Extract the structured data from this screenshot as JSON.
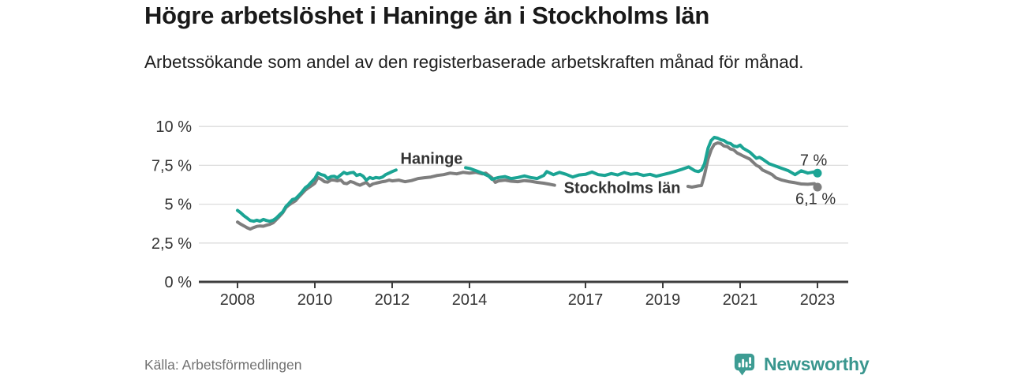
{
  "header": {
    "title": "Högre arbetslöshet i Haninge än i Stockholms län",
    "subtitle": "Arbetssökande som andel av den registerbaserade arbetskraften månad för månad."
  },
  "footer": {
    "source": "Källa: Arbetsförmedlingen",
    "logo_text": "Newsworthy",
    "logo_icon": "bar-chart-speech-bubble-icon"
  },
  "colors": {
    "haninge": "#1ba494",
    "stockholm": "#7e7e7e",
    "axis": "#3d3d3d",
    "grid": "#dcdcdc",
    "tick_text": "#333333",
    "value_text": "#2e2e2e",
    "logo": "#3a988f"
  },
  "chart_data": {
    "type": "line",
    "unit": "%",
    "grid": true,
    "legend": "inline-labels",
    "ylim": [
      0,
      10
    ],
    "xlim": [
      2007,
      2023.85
    ],
    "y_ticks": [
      {
        "v": 0,
        "label": "0 %"
      },
      {
        "v": 2.5,
        "label": "2,5 %"
      },
      {
        "v": 5,
        "label": "5 %"
      },
      {
        "v": 7.5,
        "label": "7,5 %"
      },
      {
        "v": 10,
        "label": "10 %"
      }
    ],
    "x_ticks": [
      {
        "x": 2008,
        "label": "2008"
      },
      {
        "x": 2010,
        "label": "2010"
      },
      {
        "x": 2012,
        "label": "2012"
      },
      {
        "x": 2014,
        "label": "2014"
      },
      {
        "x": 2017,
        "label": "2017"
      },
      {
        "x": 2019,
        "label": "2019"
      },
      {
        "x": 2021,
        "label": "2021"
      },
      {
        "x": 2023,
        "label": "2023"
      }
    ],
    "series": [
      {
        "name": "Stockholms län",
        "slug": "stockholms-lan",
        "color": "#7e7e7e",
        "end_value": 6.1,
        "end_label": "6,1 %",
        "end_label_xy": [
          2022.95,
          5.35
        ],
        "label_xy": [
          2017.95,
          6.08
        ],
        "segments": [
          [
            [
              2008.0,
              3.85
            ],
            [
              2008.08,
              3.72
            ],
            [
              2008.17,
              3.6
            ],
            [
              2008.25,
              3.48
            ],
            [
              2008.33,
              3.4
            ],
            [
              2008.42,
              3.5
            ],
            [
              2008.5,
              3.57
            ],
            [
              2008.58,
              3.6
            ],
            [
              2008.67,
              3.58
            ],
            [
              2008.75,
              3.65
            ],
            [
              2008.83,
              3.7
            ],
            [
              2008.92,
              3.8
            ],
            [
              2009.0,
              4.0
            ],
            [
              2009.08,
              4.2
            ],
            [
              2009.17,
              4.45
            ],
            [
              2009.25,
              4.78
            ],
            [
              2009.33,
              4.95
            ],
            [
              2009.42,
              5.1
            ],
            [
              2009.5,
              5.22
            ],
            [
              2009.58,
              5.45
            ],
            [
              2009.67,
              5.68
            ],
            [
              2009.75,
              5.9
            ],
            [
              2009.83,
              6.05
            ],
            [
              2009.92,
              6.2
            ],
            [
              2010.0,
              6.35
            ],
            [
              2010.08,
              6.72
            ],
            [
              2010.17,
              6.6
            ],
            [
              2010.25,
              6.45
            ],
            [
              2010.33,
              6.42
            ],
            [
              2010.42,
              6.56
            ],
            [
              2010.5,
              6.55
            ],
            [
              2010.58,
              6.5
            ],
            [
              2010.67,
              6.56
            ],
            [
              2010.75,
              6.35
            ],
            [
              2010.83,
              6.32
            ],
            [
              2010.92,
              6.46
            ],
            [
              2011.0,
              6.4
            ],
            [
              2011.08,
              6.3
            ],
            [
              2011.17,
              6.22
            ],
            [
              2011.25,
              6.32
            ],
            [
              2011.33,
              6.4
            ],
            [
              2011.42,
              6.18
            ],
            [
              2011.5,
              6.3
            ],
            [
              2011.58,
              6.35
            ],
            [
              2011.67,
              6.4
            ],
            [
              2011.75,
              6.45
            ],
            [
              2011.83,
              6.48
            ],
            [
              2011.92,
              6.55
            ],
            [
              2012.0,
              6.5
            ],
            [
              2012.17,
              6.55
            ],
            [
              2012.33,
              6.45
            ],
            [
              2012.5,
              6.52
            ],
            [
              2012.67,
              6.65
            ],
            [
              2012.83,
              6.7
            ],
            [
              2013.0,
              6.75
            ],
            [
              2013.17,
              6.85
            ],
            [
              2013.33,
              6.9
            ],
            [
              2013.5,
              7.0
            ],
            [
              2013.67,
              6.95
            ],
            [
              2013.83,
              7.05
            ],
            [
              2014.0,
              7.0
            ],
            [
              2014.17,
              7.05
            ],
            [
              2014.33,
              6.95
            ],
            [
              2014.42,
              7.0
            ],
            [
              2014.58,
              6.7
            ],
            [
              2014.67,
              6.4
            ],
            [
              2014.75,
              6.5
            ],
            [
              2014.92,
              6.55
            ],
            [
              2015.08,
              6.48
            ],
            [
              2015.25,
              6.45
            ],
            [
              2015.42,
              6.52
            ],
            [
              2015.58,
              6.48
            ],
            [
              2015.75,
              6.4
            ],
            [
              2015.92,
              6.35
            ],
            [
              2016.08,
              6.28
            ],
            [
              2016.2,
              6.22
            ]
          ],
          [
            [
              2019.65,
              6.15
            ],
            [
              2019.75,
              6.1
            ],
            [
              2019.92,
              6.18
            ],
            [
              2020.0,
              6.2
            ],
            [
              2020.08,
              6.9
            ],
            [
              2020.17,
              7.9
            ],
            [
              2020.25,
              8.5
            ],
            [
              2020.33,
              8.85
            ],
            [
              2020.42,
              8.95
            ],
            [
              2020.5,
              8.9
            ],
            [
              2020.58,
              8.75
            ],
            [
              2020.67,
              8.7
            ],
            [
              2020.75,
              8.55
            ],
            [
              2020.83,
              8.5
            ],
            [
              2020.92,
              8.3
            ],
            [
              2021.0,
              8.2
            ],
            [
              2021.08,
              8.1
            ],
            [
              2021.25,
              7.9
            ],
            [
              2021.42,
              7.5
            ],
            [
              2021.5,
              7.4
            ],
            [
              2021.58,
              7.2
            ],
            [
              2021.75,
              7.0
            ],
            [
              2021.83,
              6.9
            ],
            [
              2021.92,
              6.7
            ],
            [
              2022.08,
              6.55
            ],
            [
              2022.25,
              6.45
            ],
            [
              2022.42,
              6.38
            ],
            [
              2022.58,
              6.3
            ],
            [
              2022.75,
              6.28
            ],
            [
              2022.92,
              6.32
            ],
            [
              2023.0,
              6.1
            ]
          ]
        ]
      },
      {
        "name": "Haninge",
        "slug": "haninge",
        "color": "#1ba494",
        "end_value": 7.0,
        "end_label": "7 %",
        "end_label_xy": [
          2022.9,
          7.85
        ],
        "label_xy": [
          2013.02,
          7.95
        ],
        "segments": [
          [
            [
              2008.0,
              4.6
            ],
            [
              2008.08,
              4.45
            ],
            [
              2008.17,
              4.25
            ],
            [
              2008.25,
              4.1
            ],
            [
              2008.33,
              3.95
            ],
            [
              2008.42,
              3.9
            ],
            [
              2008.5,
              3.97
            ],
            [
              2008.58,
              3.9
            ],
            [
              2008.67,
              4.02
            ],
            [
              2008.75,
              3.95
            ],
            [
              2008.83,
              3.9
            ],
            [
              2008.92,
              3.97
            ],
            [
              2009.0,
              4.1
            ],
            [
              2009.08,
              4.3
            ],
            [
              2009.17,
              4.5
            ],
            [
              2009.25,
              4.85
            ],
            [
              2009.33,
              5.05
            ],
            [
              2009.42,
              5.3
            ],
            [
              2009.5,
              5.35
            ],
            [
              2009.58,
              5.55
            ],
            [
              2009.67,
              5.8
            ],
            [
              2009.75,
              6.05
            ],
            [
              2009.83,
              6.2
            ],
            [
              2009.92,
              6.45
            ],
            [
              2010.0,
              6.65
            ],
            [
              2010.08,
              7.0
            ],
            [
              2010.17,
              6.9
            ],
            [
              2010.25,
              6.85
            ],
            [
              2010.33,
              6.65
            ],
            [
              2010.42,
              6.78
            ],
            [
              2010.5,
              6.8
            ],
            [
              2010.58,
              6.7
            ],
            [
              2010.67,
              6.88
            ],
            [
              2010.75,
              7.05
            ],
            [
              2010.83,
              6.95
            ],
            [
              2010.92,
              7.02
            ],
            [
              2011.0,
              7.05
            ],
            [
              2011.08,
              6.85
            ],
            [
              2011.17,
              6.92
            ],
            [
              2011.25,
              6.8
            ],
            [
              2011.33,
              6.55
            ],
            [
              2011.42,
              6.72
            ],
            [
              2011.5,
              6.65
            ],
            [
              2011.58,
              6.72
            ],
            [
              2011.67,
              6.68
            ],
            [
              2011.75,
              6.75
            ],
            [
              2011.83,
              6.9
            ],
            [
              2011.92,
              7.0
            ],
            [
              2012.0,
              7.1
            ],
            [
              2012.1,
              7.2
            ]
          ],
          [
            [
              2013.9,
              7.35
            ],
            [
              2014.0,
              7.3
            ],
            [
              2014.17,
              7.15
            ],
            [
              2014.33,
              7.0
            ],
            [
              2014.5,
              6.8
            ],
            [
              2014.58,
              6.6
            ],
            [
              2014.75,
              6.72
            ],
            [
              2014.92,
              6.78
            ],
            [
              2015.08,
              6.65
            ],
            [
              2015.25,
              6.72
            ],
            [
              2015.42,
              6.82
            ],
            [
              2015.58,
              6.72
            ],
            [
              2015.75,
              6.65
            ],
            [
              2015.92,
              6.85
            ],
            [
              2016.0,
              7.1
            ],
            [
              2016.17,
              6.9
            ],
            [
              2016.33,
              7.05
            ],
            [
              2016.5,
              6.92
            ],
            [
              2016.67,
              6.75
            ],
            [
              2016.83,
              6.88
            ],
            [
              2017.0,
              6.92
            ],
            [
              2017.17,
              7.07
            ],
            [
              2017.33,
              6.9
            ],
            [
              2017.5,
              6.85
            ],
            [
              2017.67,
              6.97
            ],
            [
              2017.83,
              6.88
            ],
            [
              2018.0,
              7.03
            ],
            [
              2018.17,
              6.92
            ],
            [
              2018.33,
              6.97
            ],
            [
              2018.5,
              6.85
            ],
            [
              2018.67,
              6.92
            ],
            [
              2018.83,
              6.8
            ],
            [
              2019.0,
              6.9
            ],
            [
              2019.17,
              7.0
            ],
            [
              2019.33,
              7.12
            ],
            [
              2019.5,
              7.25
            ],
            [
              2019.67,
              7.4
            ],
            [
              2019.83,
              7.15
            ],
            [
              2019.92,
              7.1
            ],
            [
              2020.0,
              7.2
            ],
            [
              2020.08,
              7.6
            ],
            [
              2020.17,
              8.6
            ],
            [
              2020.25,
              9.1
            ],
            [
              2020.33,
              9.3
            ],
            [
              2020.42,
              9.25
            ],
            [
              2020.5,
              9.15
            ],
            [
              2020.58,
              9.1
            ],
            [
              2020.67,
              8.95
            ],
            [
              2020.75,
              8.9
            ],
            [
              2020.83,
              8.75
            ],
            [
              2020.92,
              8.7
            ],
            [
              2021.0,
              8.8
            ],
            [
              2021.08,
              8.6
            ],
            [
              2021.25,
              8.35
            ],
            [
              2021.42,
              7.95
            ],
            [
              2021.5,
              8.02
            ],
            [
              2021.58,
              7.9
            ],
            [
              2021.75,
              7.6
            ],
            [
              2021.92,
              7.45
            ],
            [
              2022.08,
              7.3
            ],
            [
              2022.25,
              7.15
            ],
            [
              2022.42,
              6.9
            ],
            [
              2022.58,
              7.15
            ],
            [
              2022.75,
              7.0
            ],
            [
              2022.92,
              7.08
            ],
            [
              2023.0,
              7.0
            ]
          ]
        ]
      }
    ]
  }
}
